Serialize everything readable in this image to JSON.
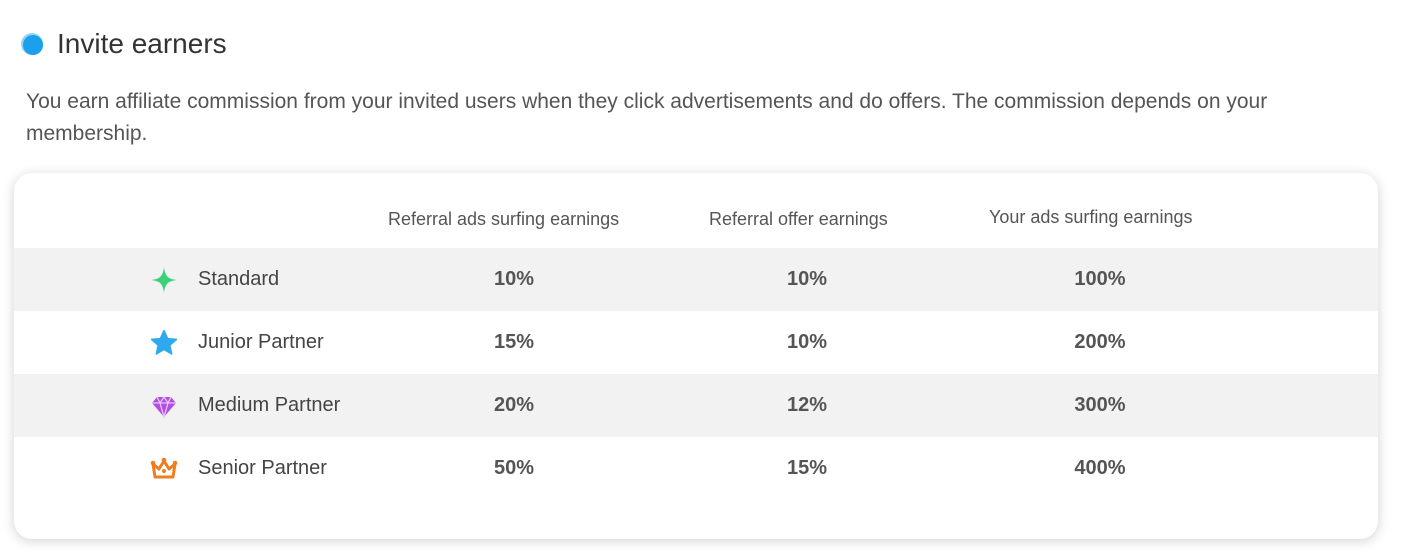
{
  "section": {
    "title": "Invite earners",
    "description": "You earn affiliate commission from your invited users when they click advertisements and do offers. The commission depends on your membership."
  },
  "table": {
    "columns": [
      "Referral ads surfing earnings",
      "Referral offer earnings",
      "Your ads surfing earnings"
    ],
    "rows": [
      {
        "tier": "Standard",
        "icon": "sparkle-icon",
        "icon_color": "#3ecf7a",
        "values": [
          "10%",
          "10%",
          "100%"
        ]
      },
      {
        "tier": "Junior Partner",
        "icon": "star-icon",
        "icon_color": "#2ea8ee",
        "values": [
          "15%",
          "10%",
          "200%"
        ]
      },
      {
        "tier": "Medium Partner",
        "icon": "diamond-icon",
        "icon_color": "#b04fe0",
        "values": [
          "20%",
          "12%",
          "300%"
        ]
      },
      {
        "tier": "Senior Partner",
        "icon": "crown-icon",
        "icon_color": "#ef7d22",
        "values": [
          "50%",
          "15%",
          "400%"
        ]
      }
    ]
  },
  "colors": {
    "accent": "#1aa0ec",
    "row_shade": "#f2f2f2"
  }
}
